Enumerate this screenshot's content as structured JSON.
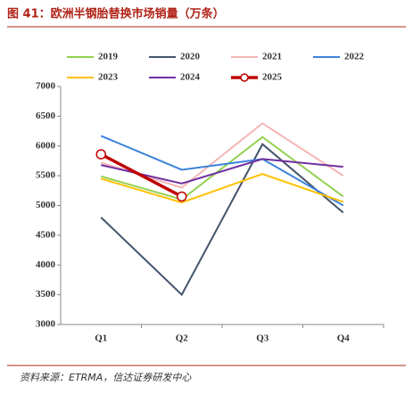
{
  "chart_data": {
    "type": "line",
    "title": "图 41：欧洲半钢胎替换市场销量（万条）",
    "source": "资料来源：ETRMA，信达证券研发中心",
    "categories": [
      "Q1",
      "Q2",
      "Q3",
      "Q4"
    ],
    "series": [
      {
        "name": "2019",
        "color": "#92d050",
        "values": [
          5490,
          5100,
          6150,
          5150
        ]
      },
      {
        "name": "2020",
        "color": "#44546a",
        "values": [
          4800,
          3500,
          6030,
          4880
        ]
      },
      {
        "name": "2021",
        "color": "#f4b6b6",
        "values": [
          5720,
          5300,
          6380,
          5500
        ]
      },
      {
        "name": "2022",
        "color": "#3c82dc",
        "values": [
          6170,
          5600,
          5780,
          5000
        ]
      },
      {
        "name": "2023",
        "color": "#ffc000",
        "values": [
          5450,
          5050,
          5530,
          5060
        ]
      },
      {
        "name": "2024",
        "color": "#7030a0",
        "values": [
          5680,
          5370,
          5780,
          5650
        ]
      },
      {
        "name": "2025",
        "color": "#c00000",
        "values": [
          5860,
          5150,
          null,
          null
        ],
        "marker": "circle"
      }
    ],
    "ylim": [
      3000,
      7000
    ],
    "yticks": [
      3000,
      3500,
      4000,
      4500,
      5000,
      5500,
      6000,
      6500,
      7000
    ],
    "legend": "top"
  }
}
